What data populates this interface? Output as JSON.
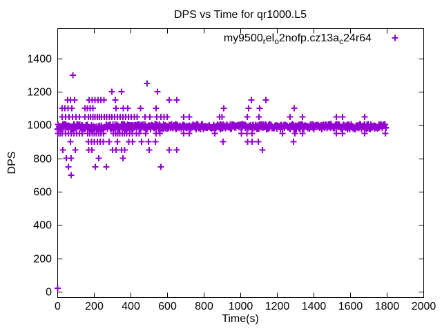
{
  "figure": {
    "background": "#ffffff",
    "plot_style": "gnuplot"
  },
  "chart_data": {
    "type": "scatter",
    "title": "DPS vs Time for qr1000.L5",
    "xlabel": "Time(s)",
    "ylabel": "DPS",
    "xlim": [
      0,
      2000
    ],
    "ylim": [
      0,
      1580
    ],
    "xticks": [
      0,
      200,
      400,
      600,
      800,
      1000,
      1200,
      1400,
      1600,
      1800,
      2000
    ],
    "yticks": [
      0,
      200,
      400,
      600,
      800,
      1000,
      1200,
      1400
    ],
    "grid": false,
    "tick_style": "inward-mirrored",
    "axis_color": "#000000",
    "marker_color": "#9400d3",
    "legend": {
      "position": "top-right-inside",
      "marker": "plus"
    },
    "series": [
      {
        "name": "my9500_rel_o2nofp.cz13a_c24r64",
        "name_display": [
          {
            "t": "my9500"
          },
          {
            "t": "r",
            "sub": true
          },
          {
            "t": "el"
          },
          {
            "t": "o",
            "sub": true
          },
          {
            "t": "2nofp.cz13a"
          },
          {
            "t": "c",
            "sub": true
          },
          {
            "t": "24r64"
          }
        ],
        "marker": "plus",
        "color": "#9400d3",
        "dense_band": {
          "description": "solid band of overlapping + markers",
          "t_start": 0,
          "t_end": 1797,
          "t_step": 3,
          "dps_min": 974,
          "dps_max": 1006
        },
        "outlier_points": [
          [
            85,
            1300
          ],
          [
            490,
            1250
          ],
          [
            298,
            1200
          ],
          [
            351,
            1200
          ],
          [
            547,
            1200
          ],
          [
            57,
            1150
          ],
          [
            72,
            1150
          ],
          [
            94,
            1150
          ],
          [
            174,
            1150
          ],
          [
            190,
            1150
          ],
          [
            206,
            1150
          ],
          [
            222,
            1150
          ],
          [
            238,
            1150
          ],
          [
            254,
            1150
          ],
          [
            317,
            1150
          ],
          [
            612,
            1150
          ],
          [
            652,
            1150
          ],
          [
            1060,
            1150
          ],
          [
            1140,
            1150
          ],
          [
            26,
            1100
          ],
          [
            42,
            1100
          ],
          [
            58,
            1100
          ],
          [
            79,
            1100
          ],
          [
            150,
            1100
          ],
          [
            165,
            1100
          ],
          [
            180,
            1100
          ],
          [
            195,
            1100
          ],
          [
            321,
            1100
          ],
          [
            360,
            1100
          ],
          [
            385,
            1100
          ],
          [
            455,
            1100
          ],
          [
            540,
            1100
          ],
          [
            910,
            1100
          ],
          [
            1045,
            1100
          ],
          [
            1106,
            1100
          ],
          [
            1294,
            1100
          ],
          [
            26,
            1050
          ],
          [
            45,
            1050
          ],
          [
            64,
            1050
          ],
          [
            83,
            1050
          ],
          [
            102,
            1050
          ],
          [
            121,
            1050
          ],
          [
            151,
            1050
          ],
          [
            170,
            1050
          ],
          [
            182,
            1050
          ],
          [
            194,
            1050
          ],
          [
            206,
            1050
          ],
          [
            218,
            1050
          ],
          [
            230,
            1050
          ],
          [
            242,
            1050
          ],
          [
            256,
            1050
          ],
          [
            270,
            1050
          ],
          [
            284,
            1050
          ],
          [
            298,
            1050
          ],
          [
            313,
            1050
          ],
          [
            328,
            1050
          ],
          [
            343,
            1050
          ],
          [
            358,
            1050
          ],
          [
            373,
            1050
          ],
          [
            388,
            1050
          ],
          [
            404,
            1050
          ],
          [
            420,
            1050
          ],
          [
            436,
            1050
          ],
          [
            479,
            1050
          ],
          [
            505,
            1050
          ],
          [
            543,
            1050
          ],
          [
            566,
            1050
          ],
          [
            583,
            1050
          ],
          [
            600,
            1050
          ],
          [
            690,
            1050
          ],
          [
            720,
            1050
          ],
          [
            887,
            1050
          ],
          [
            900,
            1050
          ],
          [
            1038,
            1050
          ],
          [
            1102,
            1050
          ],
          [
            1272,
            1050
          ],
          [
            1340,
            1050
          ],
          [
            1525,
            1050
          ],
          [
            1558,
            1050
          ],
          [
            1679,
            1050
          ],
          [
            4,
            950
          ],
          [
            15,
            950
          ],
          [
            26,
            950
          ],
          [
            45,
            950
          ],
          [
            60,
            950
          ],
          [
            75,
            950
          ],
          [
            91,
            950
          ],
          [
            106,
            950
          ],
          [
            121,
            950
          ],
          [
            136,
            950
          ],
          [
            166,
            950
          ],
          [
            178,
            950
          ],
          [
            190,
            950
          ],
          [
            202,
            950
          ],
          [
            214,
            950
          ],
          [
            226,
            950
          ],
          [
            238,
            950
          ],
          [
            252,
            950
          ],
          [
            306,
            950
          ],
          [
            318,
            950
          ],
          [
            330,
            950
          ],
          [
            342,
            950
          ],
          [
            354,
            950
          ],
          [
            366,
            950
          ],
          [
            380,
            950
          ],
          [
            395,
            950
          ],
          [
            410,
            950
          ],
          [
            432,
            950
          ],
          [
            447,
            950
          ],
          [
            483,
            950
          ],
          [
            540,
            950
          ],
          [
            560,
            950
          ],
          [
            690,
            950
          ],
          [
            720,
            950
          ],
          [
            860,
            950
          ],
          [
            1005,
            950
          ],
          [
            1035,
            950
          ],
          [
            1065,
            950
          ],
          [
            1230,
            950
          ],
          [
            1298,
            950
          ],
          [
            1340,
            950
          ],
          [
            1525,
            950
          ],
          [
            1558,
            950
          ],
          [
            1679,
            950
          ],
          [
            1792,
            950
          ],
          [
            72,
            900
          ],
          [
            170,
            900
          ],
          [
            186,
            900
          ],
          [
            202,
            900
          ],
          [
            218,
            900
          ],
          [
            234,
            900
          ],
          [
            250,
            900
          ],
          [
            283,
            900
          ],
          [
            328,
            900
          ],
          [
            390,
            900
          ],
          [
            411,
            900
          ],
          [
            460,
            900
          ],
          [
            498,
            900
          ],
          [
            536,
            900
          ],
          [
            906,
            900
          ],
          [
            1040,
            900
          ],
          [
            1064,
            900
          ],
          [
            1098,
            900
          ],
          [
            1290,
            900
          ],
          [
            30,
            850
          ],
          [
            98,
            850
          ],
          [
            172,
            850
          ],
          [
            188,
            850
          ],
          [
            302,
            850
          ],
          [
            320,
            850
          ],
          [
            350,
            850
          ],
          [
            368,
            850
          ],
          [
            502,
            850
          ],
          [
            612,
            850
          ],
          [
            652,
            850
          ],
          [
            1120,
            850
          ],
          [
            49,
            800
          ],
          [
            75,
            800
          ],
          [
            227,
            800
          ],
          [
            359,
            800
          ],
          [
            60,
            750
          ],
          [
            208,
            750
          ],
          [
            268,
            750
          ],
          [
            566,
            750
          ],
          [
            75,
            700
          ],
          [
            2,
            20
          ]
        ]
      }
    ]
  }
}
